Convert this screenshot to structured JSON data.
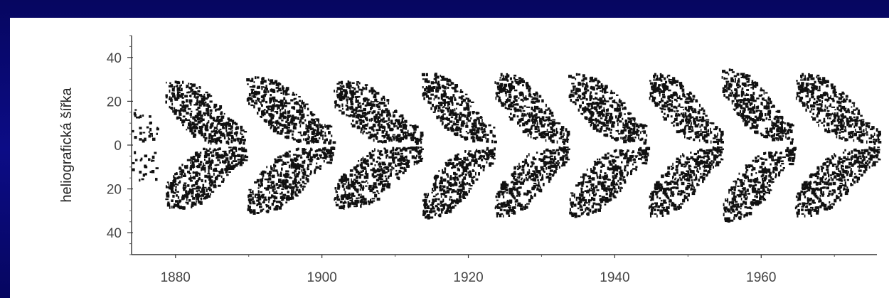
{
  "chart_data": {
    "type": "scatter",
    "ylabel": "heliografická šířka",
    "xlim": [
      1874,
      1976
    ],
    "ylim": [
      -50,
      50
    ],
    "x_ticks": [
      1880,
      1900,
      1920,
      1940,
      1960
    ],
    "x_tick_labels": [
      "1880",
      "1900",
      "1920",
      "1940",
      "1960"
    ],
    "y_ticks": [
      40,
      20,
      0,
      -20,
      -40
    ],
    "y_tick_labels": [
      "40",
      "20",
      "0",
      "20",
      "40"
    ],
    "grid": false,
    "legend": "none",
    "mark_color": "#111111",
    "cycles": [
      {
        "start": 1878.5,
        "end": 1889.5,
        "max_latitude": 30
      },
      {
        "start": 1889.5,
        "end": 1901.5,
        "max_latitude": 33
      },
      {
        "start": 1901.5,
        "end": 1913.5,
        "max_latitude": 30
      },
      {
        "start": 1913.5,
        "end": 1923.5,
        "max_latitude": 36
      },
      {
        "start": 1923.5,
        "end": 1933.5,
        "max_latitude": 35
      },
      {
        "start": 1933.5,
        "end": 1944.5,
        "max_latitude": 35
      },
      {
        "start": 1944.5,
        "end": 1954.5,
        "max_latitude": 35
      },
      {
        "start": 1954.5,
        "end": 1964.5,
        "max_latitude": 38
      },
      {
        "start": 1964.5,
        "end": 1976.0,
        "max_latitude": 35
      }
    ]
  }
}
